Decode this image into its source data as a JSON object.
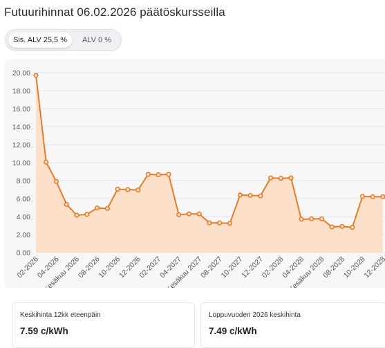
{
  "header": {
    "title": "Futuurihinnat 06.02.2026 päätöskursseilla"
  },
  "vat_toggle": {
    "options": [
      "Sis. ALV 25,5 %",
      "ALV 0 %"
    ],
    "selected": "Sis. ALV 25,5 %"
  },
  "colors": {
    "line": "#ee7111",
    "fill": "#fde0c9"
  },
  "chart_data": {
    "type": "area",
    "title": "",
    "xlabel": "",
    "ylabel": "",
    "ylim": [
      0,
      20
    ],
    "yticks": [
      "0.00",
      "2.00",
      "4.00",
      "6.00",
      "8.00",
      "10.00",
      "12.00",
      "14.00",
      "16.00",
      "18.00",
      "20.00"
    ],
    "grid": true,
    "x_tick_labels": [
      "02-2026",
      "04-2026",
      "Kesäkuu 2026",
      "08-2026",
      "10-2026",
      "12-2026",
      "02-2027",
      "04-2027",
      "Kesäkuu 2027",
      "08-2027",
      "10-2027",
      "12-2027",
      "02-2028",
      "04-2028",
      "Kesäkuu 2028",
      "08-2028",
      "10-2028",
      "12-2028"
    ],
    "x": [
      "02-2026",
      "03-2026",
      "04-2026",
      "05-2026",
      "06-2026",
      "07-2026",
      "08-2026",
      "09-2026",
      "10-2026",
      "11-2026",
      "12-2026",
      "01-2027",
      "02-2027",
      "03-2027",
      "04-2027",
      "05-2027",
      "06-2027",
      "07-2027",
      "08-2027",
      "09-2027",
      "10-2027",
      "11-2027",
      "12-2027",
      "01-2028",
      "02-2028",
      "03-2028",
      "04-2028",
      "05-2028",
      "06-2028",
      "07-2028",
      "08-2028",
      "09-2028",
      "10-2028",
      "11-2028",
      "12-2028"
    ],
    "values": [
      19.7,
      10.05,
      7.9,
      5.35,
      4.15,
      4.25,
      4.95,
      4.9,
      7.05,
      7.0,
      6.95,
      8.7,
      8.65,
      8.7,
      4.2,
      4.3,
      4.3,
      3.3,
      3.3,
      3.25,
      6.4,
      6.35,
      6.3,
      8.3,
      8.25,
      8.3,
      3.7,
      3.75,
      3.75,
      2.85,
      2.9,
      2.8,
      6.25,
      6.2,
      6.2
    ]
  },
  "stats": [
    {
      "label": "Keskihinta 12kk eteenpäin",
      "value": "7.59 c/kWh"
    },
    {
      "label": "Loppuvuoden 2026 keskihinta",
      "value": "7.49 c/kWh"
    }
  ]
}
